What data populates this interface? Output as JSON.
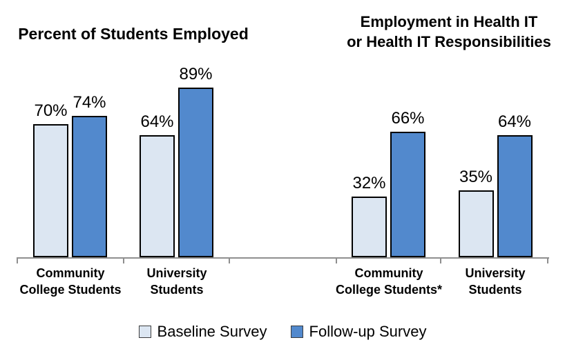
{
  "chart_data": {
    "type": "bar",
    "value_suffix": "%",
    "ylim": [
      0,
      100
    ],
    "grid": false,
    "legend_position": "bottom",
    "panels": [
      {
        "title_lines": [
          "Percent of Students Employed"
        ]
      },
      {
        "title_lines": [
          "Employment in Health IT",
          "or Health IT Responsibilities"
        ]
      }
    ],
    "categories": [
      {
        "panel": 0,
        "lines": [
          "Community",
          "College Students"
        ]
      },
      {
        "panel": 0,
        "lines": [
          "University",
          "Students"
        ]
      },
      {
        "panel": 1,
        "lines": [
          "Community",
          "College Students*"
        ]
      },
      {
        "panel": 1,
        "lines": [
          "University",
          "Students"
        ]
      }
    ],
    "series": [
      {
        "name": "Baseline Survey",
        "color": "#dce6f2",
        "values": [
          70,
          64,
          32,
          35
        ]
      },
      {
        "name": "Follow-up Survey",
        "color": "#5289cd",
        "values": [
          74,
          89,
          66,
          64
        ]
      }
    ]
  },
  "colors": {
    "axis": "#8e8e8e",
    "bar_border": "#000000",
    "text": "#000000"
  }
}
